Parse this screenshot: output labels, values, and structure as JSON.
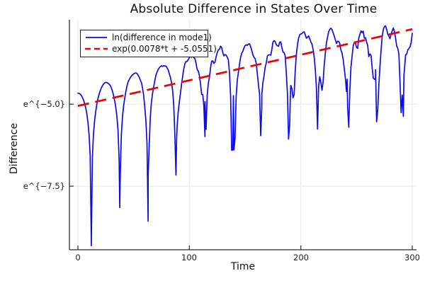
{
  "chart_data": {
    "type": "line",
    "title": "Absolute Difference in States Over Time",
    "xlabel": "Time",
    "ylabel": "Difference",
    "xlim": [
      -7.6,
      303.8
    ],
    "ylim": [
      -9.44,
      -2.43
    ],
    "grid": true,
    "grid_color": "#e8e8e8",
    "spine_color": "#2b2b2b",
    "legend_position": "top-left-inside",
    "xticks": [
      {
        "value": 0,
        "label": "0"
      },
      {
        "value": 100,
        "label": "100"
      },
      {
        "value": 200,
        "label": "200"
      },
      {
        "value": 300,
        "label": "300"
      }
    ],
    "yticks": [
      {
        "value": -5.0,
        "label": "e^{−5.0}"
      },
      {
        "value": -7.5,
        "label": "e^{−7.5}"
      }
    ],
    "series": [
      {
        "name": "ln(difference in mode1)",
        "color": "#0b0bee",
        "style": "solid",
        "width": 1.7,
        "model": {
          "description": "y(t)=ln|exp(envelope)·cos(2π(t−t_peak)/period)+noise·exp(floor)| sampled dt=1, cusps at cosine zeros",
          "envelope_quadratic": [
            -4.665,
            0.0132,
            -2.333e-05
          ],
          "period": 51,
          "t_peak": -0.7,
          "noise_floor_early": [
            -9.5,
            0.042
          ],
          "noise_floor_late": [
            -5.617,
            0.0067
          ],
          "noise_amp": 1.1,
          "t_range": [
            0,
            300
          ],
          "dt": 1,
          "seed": 42,
          "clip_min": -9.35
        },
        "keypoints": {
          "peaks_t": [
            24.8,
            49,
            74.4,
            100.4,
            128,
            151,
            214,
            252,
            292
          ],
          "peaks_ln": [
            -4.35,
            -4.03,
            -3.79,
            -3.58,
            -3.41,
            -3.21,
            -2.84,
            -2.91,
            -2.8
          ],
          "dips_t": [
            12.05,
            37.55,
            63.05,
            88.55,
            114.05,
            139.55,
            165.05,
            190.55,
            216.05,
            241.55,
            267.05,
            292.55
          ],
          "dips_ln": [
            -9.3,
            -8.05,
            -6.4,
            -5.5,
            -4.85,
            -4.6,
            -4.45,
            -4.3,
            -4.45,
            -4.1,
            -3.9,
            -3.66
          ]
        }
      },
      {
        "name": "exp(0.0078*t + -5.0551)",
        "color": "#f00000",
        "style": "dashed",
        "dash": "16 9",
        "width": 2.7,
        "slope": 0.0078,
        "intercept": -5.0551,
        "t_range": [
          0,
          300
        ]
      }
    ]
  }
}
